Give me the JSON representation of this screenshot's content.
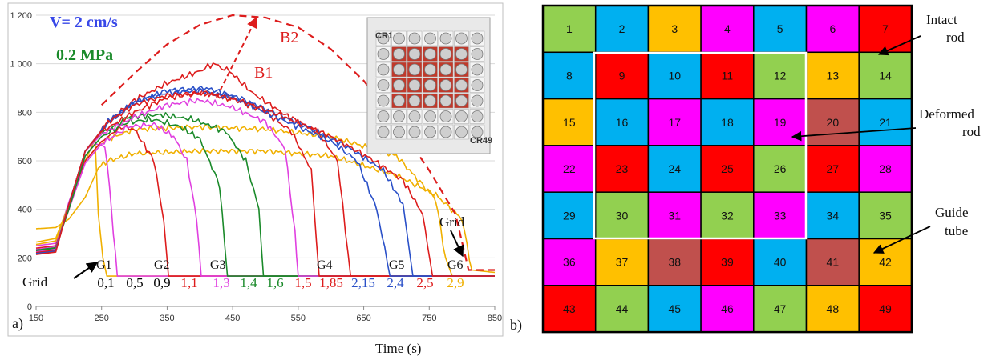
{
  "panel_a": {
    "label": "a)",
    "velocity": "V= 2 cm/s",
    "pressure": "0.2 MPa",
    "xlabel": "Time (s)",
    "grid_text": "Grid",
    "grid_label": "Grid",
    "curve_labels": [
      "B1",
      "B2"
    ],
    "grid_markers": [
      "G1",
      "G2",
      "G3",
      "G4",
      "G5",
      "G6"
    ],
    "positions": [
      {
        "text": "0,1",
        "color": "#000000"
      },
      {
        "text": "0,5",
        "color": "#000000"
      },
      {
        "text": "0,9",
        "color": "#000000"
      },
      {
        "text": "1,1",
        "color": "#dd1c1c"
      },
      {
        "text": "1,3",
        "color": "#e040e0"
      },
      {
        "text": "1,4",
        "color": "#1a8a2a"
      },
      {
        "text": "1,6",
        "color": "#1a8a2a"
      },
      {
        "text": "1,5",
        "color": "#dd1c1c"
      },
      {
        "text": "1,85",
        "color": "#dd1c1c"
      },
      {
        "text": "2,15",
        "color": "#2a50c8"
      },
      {
        "text": "2,4",
        "color": "#2a50c8"
      },
      {
        "text": "2,5",
        "color": "#dd1c1c"
      },
      {
        "text": "2,9",
        "color": "#f0b000"
      }
    ],
    "inset_labels": [
      "CR1",
      "CR49"
    ]
  },
  "chart_data": {
    "type": "line",
    "title": "",
    "xlabel": "Time (s)",
    "ylabel": "",
    "xlim": [
      150,
      850
    ],
    "ylim": [
      0,
      1200
    ],
    "xticks": [
      150,
      250,
      350,
      450,
      550,
      650,
      750,
      850
    ],
    "yticks": [
      0,
      200,
      400,
      600,
      800,
      1000,
      1200
    ],
    "ytick_labels": [
      "0",
      "200",
      "400",
      "600",
      "800",
      "1 000",
      "1 200"
    ],
    "grid": "horizontal",
    "series": [
      {
        "color": "#f0b000",
        "values": [
          [
            150,
            320
          ],
          [
            180,
            325
          ],
          [
            200,
            360
          ],
          [
            225,
            450
          ],
          [
            245,
            570
          ],
          [
            260,
            600
          ],
          [
            300,
            630
          ],
          [
            400,
            640
          ],
          [
            500,
            640
          ],
          [
            600,
            620
          ],
          [
            700,
            540
          ],
          [
            760,
            460
          ],
          [
            800,
            360
          ],
          [
            815,
            150
          ],
          [
            850,
            140
          ]
        ]
      },
      {
        "color": "#f0b000",
        "values": [
          [
            150,
            265
          ],
          [
            180,
            280
          ],
          [
            200,
            420
          ],
          [
            225,
            600
          ],
          [
            240,
            690
          ],
          [
            245,
            380
          ],
          [
            252,
            200
          ],
          [
            258,
            125
          ],
          [
            850,
            125
          ]
        ]
      },
      {
        "color": "#e040e0",
        "values": [
          [
            150,
            250
          ],
          [
            180,
            260
          ],
          [
            200,
            430
          ],
          [
            225,
            620
          ],
          [
            240,
            670
          ],
          [
            255,
            660
          ],
          [
            262,
            500
          ],
          [
            268,
            300
          ],
          [
            274,
            125
          ],
          [
            850,
            125
          ]
        ]
      },
      {
        "color": "#f0b000",
        "values": [
          [
            150,
            255
          ],
          [
            180,
            270
          ],
          [
            200,
            420
          ],
          [
            225,
            600
          ],
          [
            250,
            680
          ],
          [
            300,
            730
          ],
          [
            400,
            740
          ],
          [
            500,
            730
          ],
          [
            600,
            700
          ],
          [
            700,
            620
          ],
          [
            760,
            440
          ],
          [
            775,
            200
          ],
          [
            785,
            125
          ],
          [
            850,
            125
          ]
        ]
      },
      {
        "color": "#dd1c1c",
        "values": [
          [
            150,
            240
          ],
          [
            180,
            250
          ],
          [
            200,
            400
          ],
          [
            225,
            600
          ],
          [
            250,
            680
          ],
          [
            280,
            740
          ],
          [
            300,
            730
          ],
          [
            330,
            600
          ],
          [
            345,
            350
          ],
          [
            352,
            125
          ],
          [
            850,
            125
          ]
        ]
      },
      {
        "color": "#e040e0",
        "values": [
          [
            150,
            235
          ],
          [
            180,
            245
          ],
          [
            200,
            400
          ],
          [
            225,
            590
          ],
          [
            250,
            670
          ],
          [
            290,
            740
          ],
          [
            330,
            750
          ],
          [
            360,
            700
          ],
          [
            380,
            600
          ],
          [
            395,
            360
          ],
          [
            402,
            125
          ],
          [
            850,
            125
          ]
        ]
      },
      {
        "color": "#1a8a2a",
        "values": [
          [
            150,
            232
          ],
          [
            180,
            242
          ],
          [
            200,
            400
          ],
          [
            225,
            620
          ],
          [
            250,
            700
          ],
          [
            290,
            760
          ],
          [
            330,
            770
          ],
          [
            370,
            740
          ],
          [
            400,
            690
          ],
          [
            430,
            500
          ],
          [
            442,
            125
          ],
          [
            850,
            125
          ]
        ]
      },
      {
        "color": "#1a8a2a",
        "values": [
          [
            150,
            228
          ],
          [
            180,
            238
          ],
          [
            200,
            420
          ],
          [
            225,
            640
          ],
          [
            250,
            710
          ],
          [
            290,
            780
          ],
          [
            340,
            790
          ],
          [
            390,
            770
          ],
          [
            440,
            720
          ],
          [
            470,
            600
          ],
          [
            490,
            400
          ],
          [
            497,
            125
          ],
          [
            850,
            125
          ]
        ]
      },
      {
        "color": "#e040e0",
        "values": [
          [
            150,
            225
          ],
          [
            180,
            235
          ],
          [
            200,
            420
          ],
          [
            225,
            640
          ],
          [
            250,
            710
          ],
          [
            300,
            780
          ],
          [
            350,
            830
          ],
          [
            400,
            850
          ],
          [
            450,
            820
          ],
          [
            500,
            760
          ],
          [
            530,
            650
          ],
          [
            545,
            300
          ],
          [
            550,
            125
          ],
          [
            850,
            125
          ]
        ]
      },
      {
        "color": "#dd1c1c",
        "values": [
          [
            150,
            222
          ],
          [
            180,
            232
          ],
          [
            200,
            420
          ],
          [
            225,
            640
          ],
          [
            250,
            720
          ],
          [
            300,
            800
          ],
          [
            350,
            860
          ],
          [
            400,
            880
          ],
          [
            450,
            860
          ],
          [
            500,
            800
          ],
          [
            540,
            720
          ],
          [
            570,
            560
          ],
          [
            582,
            125
          ],
          [
            850,
            125
          ]
        ]
      },
      {
        "color": "#dd1c1c",
        "values": [
          [
            150,
            220
          ],
          [
            180,
            230
          ],
          [
            200,
            420
          ],
          [
            225,
            640
          ],
          [
            260,
            760
          ],
          [
            300,
            850
          ],
          [
            350,
            920
          ],
          [
            400,
            970
          ],
          [
            420,
            1000
          ],
          [
            445,
            970
          ],
          [
            480,
            880
          ],
          [
            530,
            790
          ],
          [
            580,
            720
          ],
          [
            610,
            600
          ],
          [
            630,
            125
          ],
          [
            850,
            125
          ]
        ]
      },
      {
        "color": "#2a50c8",
        "values": [
          [
            150,
            218
          ],
          [
            180,
            228
          ],
          [
            200,
            420
          ],
          [
            225,
            640
          ],
          [
            260,
            760
          ],
          [
            300,
            840
          ],
          [
            350,
            880
          ],
          [
            400,
            890
          ],
          [
            450,
            860
          ],
          [
            500,
            800
          ],
          [
            550,
            740
          ],
          [
            600,
            680
          ],
          [
            640,
            600
          ],
          [
            670,
            400
          ],
          [
            690,
            125
          ],
          [
            850,
            125
          ]
        ]
      },
      {
        "color": "#2a50c8",
        "values": [
          [
            150,
            216
          ],
          [
            180,
            226
          ],
          [
            200,
            420
          ],
          [
            225,
            640
          ],
          [
            260,
            760
          ],
          [
            300,
            840
          ],
          [
            350,
            890
          ],
          [
            410,
            900
          ],
          [
            460,
            860
          ],
          [
            520,
            790
          ],
          [
            580,
            720
          ],
          [
            630,
            650
          ],
          [
            680,
            560
          ],
          [
            710,
            420
          ],
          [
            725,
            125
          ],
          [
            850,
            125
          ]
        ]
      },
      {
        "color": "#dd1c1c",
        "values": [
          [
            150,
            214
          ],
          [
            180,
            224
          ],
          [
            200,
            420
          ],
          [
            225,
            640
          ],
          [
            260,
            760
          ],
          [
            300,
            830
          ],
          [
            350,
            870
          ],
          [
            410,
            880
          ],
          [
            470,
            840
          ],
          [
            530,
            780
          ],
          [
            600,
            700
          ],
          [
            660,
            610
          ],
          [
            710,
            520
          ],
          [
            740,
            380
          ],
          [
            755,
            125
          ],
          [
            850,
            125
          ]
        ]
      }
    ],
    "annotations": [
      {
        "text": "B1",
        "x": 562,
        "y": 910,
        "color": "#dd1c1c"
      },
      {
        "text": "B2",
        "x": 548,
        "y": 1125,
        "color": "#dd1c1c"
      }
    ],
    "dashed_curve": {
      "color": "#dd1c1c",
      "values": [
        [
          250,
          830
        ],
        [
          300,
          960
        ],
        [
          350,
          1080
        ],
        [
          400,
          1160
        ],
        [
          450,
          1200
        ],
        [
          500,
          1190
        ],
        [
          550,
          1150
        ],
        [
          600,
          1060
        ],
        [
          650,
          930
        ],
        [
          700,
          760
        ],
        [
          750,
          560
        ],
        [
          790,
          380
        ],
        [
          810,
          150
        ],
        [
          830,
          150
        ],
        [
          850,
          150
        ]
      ]
    }
  },
  "panel_b": {
    "label": "b)",
    "annotations": {
      "intact": [
        "Intact",
        "rod"
      ],
      "deformed": [
        "Deformed",
        "rod"
      ],
      "guide": [
        "Guide",
        "tube"
      ]
    },
    "colors": {
      "green": "#92d050",
      "blue": "#00b0f0",
      "orange": "#ffc000",
      "magenta": "#ff00ff",
      "red": "#ff0000",
      "brown": "#c0504d"
    },
    "cells": [
      {
        "n": "1",
        "c": "green"
      },
      {
        "n": "2",
        "c": "blue"
      },
      {
        "n": "3",
        "c": "orange"
      },
      {
        "n": "4",
        "c": "magenta"
      },
      {
        "n": "5",
        "c": "blue"
      },
      {
        "n": "6",
        "c": "magenta"
      },
      {
        "n": "7",
        "c": "red"
      },
      {
        "n": "8",
        "c": "blue"
      },
      {
        "n": "9",
        "c": "red"
      },
      {
        "n": "10",
        "c": "blue"
      },
      {
        "n": "11",
        "c": "red"
      },
      {
        "n": "12",
        "c": "green"
      },
      {
        "n": "13",
        "c": "orange"
      },
      {
        "n": "14",
        "c": "green"
      },
      {
        "n": "15",
        "c": "orange"
      },
      {
        "n": "16",
        "c": "blue"
      },
      {
        "n": "17",
        "c": "magenta"
      },
      {
        "n": "18",
        "c": "blue"
      },
      {
        "n": "19",
        "c": "magenta"
      },
      {
        "n": "20",
        "c": "brown"
      },
      {
        "n": "21",
        "c": "blue"
      },
      {
        "n": "22",
        "c": "magenta"
      },
      {
        "n": "23",
        "c": "red"
      },
      {
        "n": "24",
        "c": "blue"
      },
      {
        "n": "25",
        "c": "red"
      },
      {
        "n": "26",
        "c": "green"
      },
      {
        "n": "27",
        "c": "red"
      },
      {
        "n": "28",
        "c": "magenta"
      },
      {
        "n": "29",
        "c": "blue"
      },
      {
        "n": "30",
        "c": "green"
      },
      {
        "n": "31",
        "c": "magenta"
      },
      {
        "n": "32",
        "c": "green"
      },
      {
        "n": "33",
        "c": "magenta"
      },
      {
        "n": "34",
        "c": "blue"
      },
      {
        "n": "35",
        "c": "green"
      },
      {
        "n": "36",
        "c": "magenta"
      },
      {
        "n": "37",
        "c": "orange"
      },
      {
        "n": "38",
        "c": "brown"
      },
      {
        "n": "39",
        "c": "red"
      },
      {
        "n": "40",
        "c": "blue"
      },
      {
        "n": "41",
        "c": "brown"
      },
      {
        "n": "42",
        "c": "orange"
      },
      {
        "n": "43",
        "c": "red"
      },
      {
        "n": "44",
        "c": "green"
      },
      {
        "n": "45",
        "c": "blue"
      },
      {
        "n": "46",
        "c": "magenta"
      },
      {
        "n": "47",
        "c": "green"
      },
      {
        "n": "48",
        "c": "orange"
      },
      {
        "n": "49",
        "c": "red"
      }
    ]
  }
}
